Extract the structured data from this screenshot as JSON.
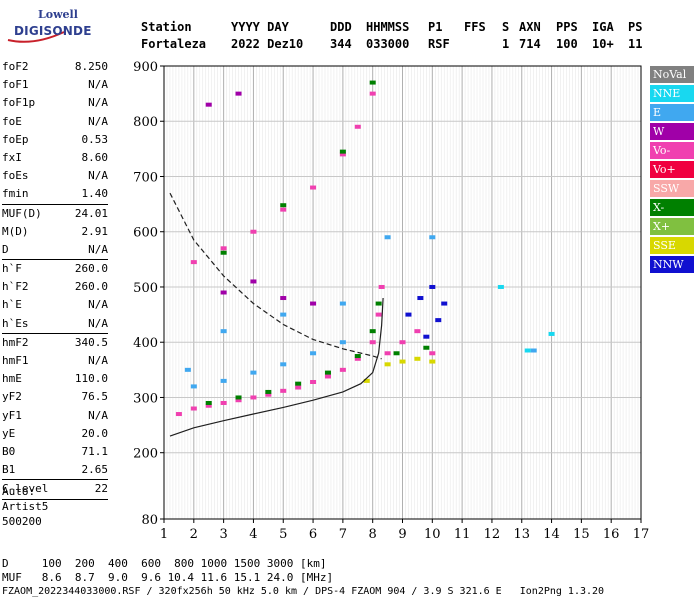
{
  "logo": {
    "line1": "Lowell",
    "line2": "DIGISONDE"
  },
  "header": {
    "labels": [
      "Station",
      "YYYY DAY",
      "DDD",
      "HHMMSS",
      "P1",
      "FFS",
      "S",
      "AXN",
      "PPS",
      "IGA",
      "PS"
    ],
    "values": [
      "Fortaleza",
      "2022 Dez10",
      "344",
      "033000",
      "RSF",
      "1",
      "714",
      "100",
      "10+",
      "11"
    ]
  },
  "params": [
    {
      "key": "foF2",
      "value": "8.250"
    },
    {
      "key": "foF1",
      "value": "N/A"
    },
    {
      "key": "foF1p",
      "value": "N/A"
    },
    {
      "key": "foE",
      "value": "N/A"
    },
    {
      "key": "foEp",
      "value": "0.53"
    },
    {
      "key": "fxI",
      "value": "8.60"
    },
    {
      "key": "foEs",
      "value": "N/A"
    },
    {
      "key": "fmin",
      "value": "1.40"
    },
    {
      "sep": true
    },
    {
      "key": "MUF(D)",
      "value": "24.01"
    },
    {
      "key": "M(D)",
      "value": "2.91"
    },
    {
      "key": "D",
      "value": "N/A"
    },
    {
      "sep": true
    },
    {
      "key": "h`F",
      "value": "260.0"
    },
    {
      "key": "h`F2",
      "value": "260.0"
    },
    {
      "key": "h`E",
      "value": "N/A"
    },
    {
      "key": "h`Es",
      "value": "N/A"
    },
    {
      "sep": true
    },
    {
      "key": "hmF2",
      "value": "340.5"
    },
    {
      "key": "hmF1",
      "value": "N/A"
    },
    {
      "key": "hmE",
      "value": "110.0"
    },
    {
      "key": "yF2",
      "value": "76.5"
    },
    {
      "key": "yF1",
      "value": "N/A"
    },
    {
      "key": "yE",
      "value": "20.0"
    },
    {
      "key": "B0",
      "value": "71.1"
    },
    {
      "key": "B1",
      "value": "2.65"
    },
    {
      "sep": true
    },
    {
      "key": "C-level",
      "value": "22"
    },
    {
      "sep": true
    }
  ],
  "auto": {
    "line1": "Auto:",
    "line2": "Artist5",
    "line3": "500200"
  },
  "bottom": {
    "d_row": "D     100  200  400  600  800 1000 1500 3000 [km]",
    "muf_row": "MUF   8.6  8.7  9.0  9.6 10.4 11.6 15.1 24.0 [MHz]",
    "footer": "FZAOM_2022344033000.RSF / 320fx256h 50 kHz 5.0 km / DPS-4 FZAOM 904 / 3.9 S 321.6 E   Ion2Png 1.3.20"
  },
  "legend": [
    {
      "label": "NoVal",
      "color": "#808080"
    },
    {
      "label": "NNE",
      "color": "#18d8f0"
    },
    {
      "label": "E",
      "color": "#40a8f0"
    },
    {
      "label": "W",
      "color": "#a000a8"
    },
    {
      "label": "Vo-",
      "color": "#f040b0"
    },
    {
      "label": "Vo+",
      "color": "#f00040"
    },
    {
      "label": "SSW",
      "color": "#f8a8a8"
    },
    {
      "label": "X-",
      "color": "#008000"
    },
    {
      "label": "X+",
      "color": "#80c040"
    },
    {
      "label": "SSE",
      "color": "#d8d800"
    },
    {
      "label": "NNW",
      "color": "#1010d0"
    }
  ],
  "chart_data": {
    "type": "scatter",
    "xlim": [
      1,
      17
    ],
    "ylim": [
      80,
      900
    ],
    "x_ticks": [
      "1",
      "2",
      "3",
      "4",
      "5",
      "6",
      "7",
      "8",
      "9",
      "10",
      "11",
      "12",
      "13",
      "14",
      "15",
      "16",
      "17"
    ],
    "y_ticks": [
      "80",
      "200",
      "300",
      "400",
      "500",
      "600",
      "700",
      "800",
      "900"
    ],
    "grid": true,
    "series": [
      {
        "name": "Vo-",
        "values": [
          [
            1.5,
            270
          ],
          [
            2,
            280
          ],
          [
            2.5,
            285
          ],
          [
            3,
            290
          ],
          [
            3.5,
            295
          ],
          [
            4,
            300
          ],
          [
            4.5,
            305
          ],
          [
            5,
            312
          ],
          [
            5.5,
            318
          ],
          [
            6,
            328
          ],
          [
            6.5,
            338
          ],
          [
            7,
            350
          ],
          [
            7.5,
            370
          ],
          [
            8,
            400
          ],
          [
            8.2,
            450
          ],
          [
            8.3,
            500
          ],
          [
            2,
            545
          ],
          [
            3,
            570
          ],
          [
            4,
            600
          ],
          [
            5,
            640
          ],
          [
            6,
            680
          ],
          [
            7,
            740
          ],
          [
            7.5,
            790
          ],
          [
            8,
            850
          ],
          [
            8.5,
            380
          ],
          [
            9,
            400
          ],
          [
            9.5,
            420
          ],
          [
            10,
            380
          ]
        ]
      },
      {
        "name": "X-",
        "values": [
          [
            2.5,
            290
          ],
          [
            3.5,
            300
          ],
          [
            4.5,
            310
          ],
          [
            5.5,
            325
          ],
          [
            6.5,
            345
          ],
          [
            7.5,
            375
          ],
          [
            8,
            420
          ],
          [
            8.2,
            470
          ],
          [
            3,
            562
          ],
          [
            5,
            648
          ],
          [
            7,
            745
          ],
          [
            8,
            870
          ],
          [
            8.8,
            380
          ],
          [
            9.8,
            390
          ]
        ]
      },
      {
        "name": "E",
        "values": [
          [
            2,
            320
          ],
          [
            3,
            330
          ],
          [
            4,
            345
          ],
          [
            5,
            360
          ],
          [
            6,
            380
          ],
          [
            7,
            400
          ],
          [
            1.8,
            350
          ],
          [
            3,
            420
          ],
          [
            5,
            450
          ],
          [
            7,
            470
          ],
          [
            8.5,
            590
          ],
          [
            10,
            590
          ],
          [
            13.4,
            385
          ]
        ]
      },
      {
        "name": "NNW",
        "values": [
          [
            9.2,
            450
          ],
          [
            9.6,
            480
          ],
          [
            10,
            500
          ],
          [
            10.2,
            440
          ],
          [
            9.8,
            410
          ],
          [
            10.4,
            470
          ]
        ]
      },
      {
        "name": "W",
        "values": [
          [
            3,
            490
          ],
          [
            4,
            510
          ],
          [
            5,
            480
          ],
          [
            6,
            470
          ],
          [
            2.5,
            830
          ],
          [
            3.5,
            850
          ]
        ]
      },
      {
        "name": "SSE",
        "values": [
          [
            8.5,
            360
          ],
          [
            9,
            365
          ],
          [
            9.5,
            370
          ],
          [
            10,
            365
          ],
          [
            7.8,
            330
          ]
        ]
      },
      {
        "name": "NNE",
        "values": [
          [
            14,
            415
          ],
          [
            13.2,
            385
          ],
          [
            12.3,
            500
          ]
        ]
      }
    ],
    "lines": [
      {
        "name": "trace-solid",
        "values": [
          [
            1.2,
            230
          ],
          [
            2,
            245
          ],
          [
            3,
            258
          ],
          [
            4,
            270
          ],
          [
            5,
            282
          ],
          [
            6,
            295
          ],
          [
            7,
            310
          ],
          [
            7.6,
            325
          ],
          [
            8,
            345
          ],
          [
            8.2,
            380
          ],
          [
            8.3,
            430
          ],
          [
            8.35,
            480
          ]
        ]
      },
      {
        "name": "trace-dashed",
        "values": [
          [
            1.2,
            670
          ],
          [
            2,
            585
          ],
          [
            3,
            520
          ],
          [
            4,
            470
          ],
          [
            5,
            432
          ],
          [
            6,
            405
          ],
          [
            7,
            388
          ],
          [
            8,
            375
          ],
          [
            8.3,
            370
          ]
        ]
      }
    ]
  }
}
